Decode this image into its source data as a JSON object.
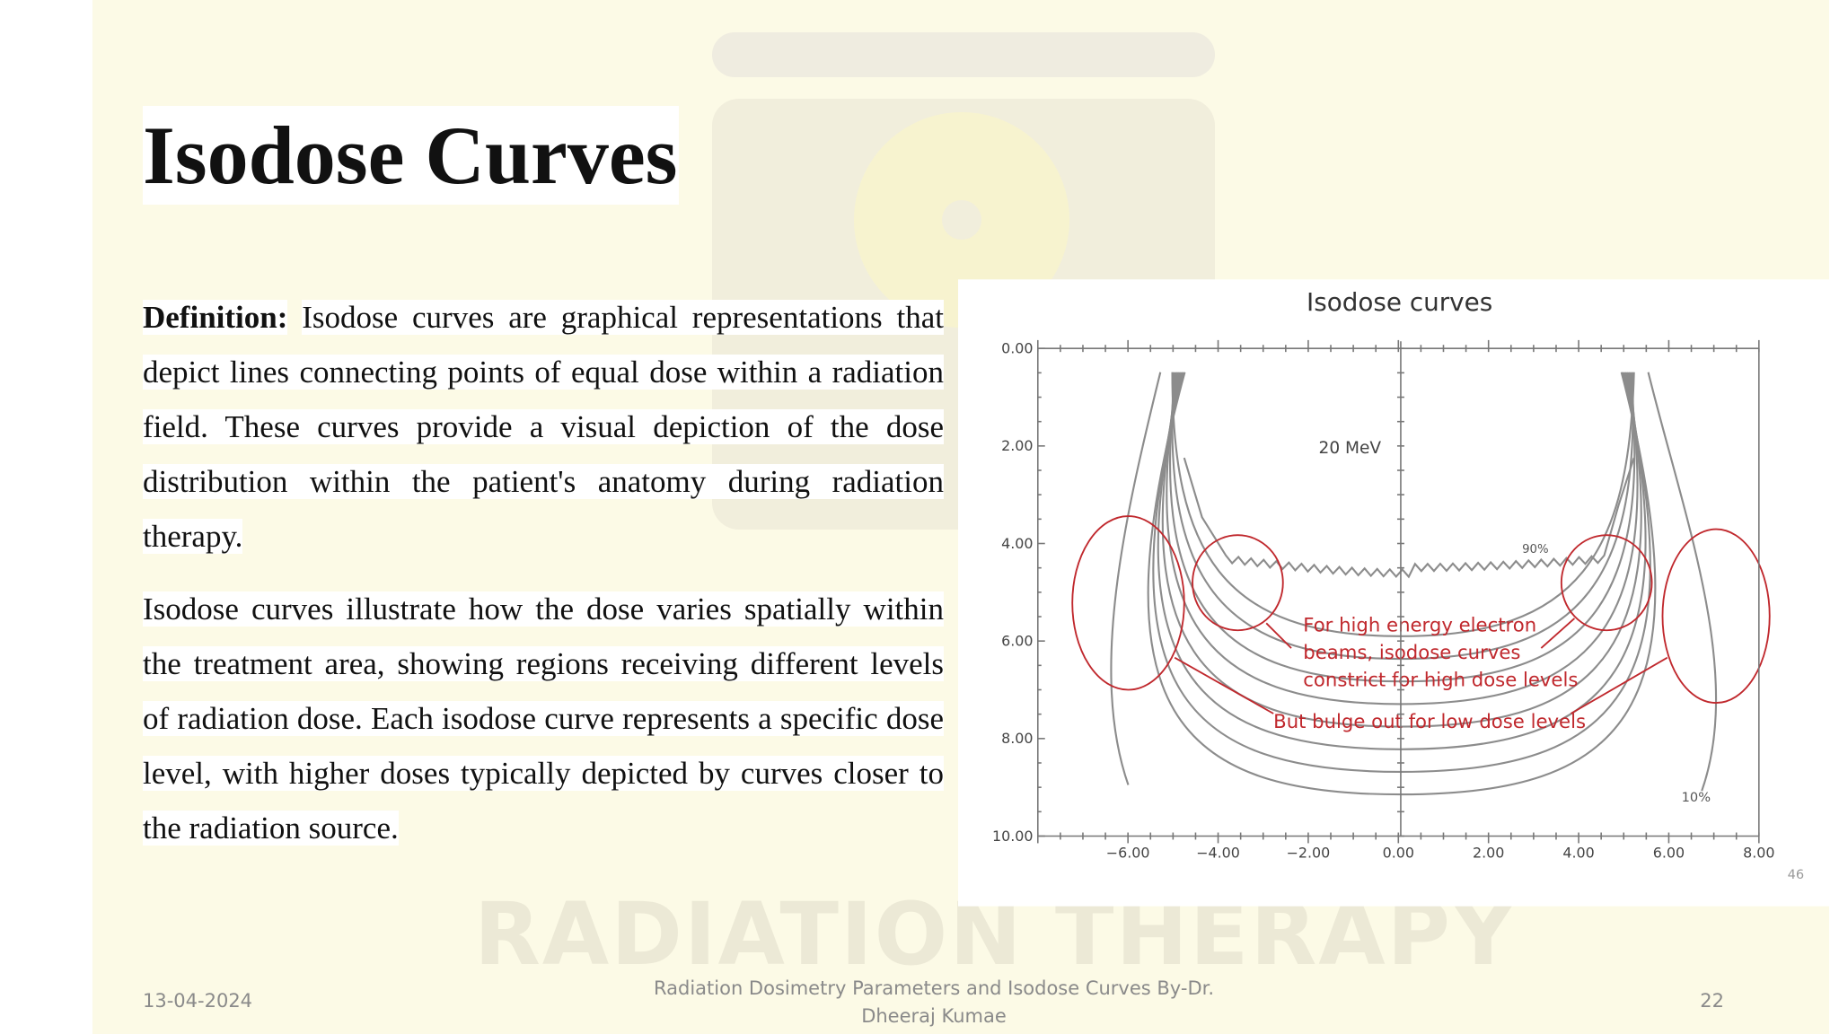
{
  "slide": {
    "title": "Isodose Curves",
    "paragraphs": [
      {
        "lead": "Definition:",
        "text": "Isodose curves are graphical representations that depict lines connecting points of equal dose within a radiation field. These curves provide a visual depiction of the dose distribution within the patient's anatomy during radiation therapy."
      },
      {
        "text": "Isodose curves illustrate how the dose varies spatially within the treatment area, showing regions receiving different levels of radiation dose. Each isodose curve represents a specific dose level, with higher doses typically depicted by curves closer to the radiation source."
      }
    ],
    "figure": {
      "title": "Isodose curves",
      "y_labels": [
        "0.00",
        "2.00",
        "4.00",
        "6.00",
        "8.00",
        "10.00"
      ],
      "x_labels": [
        "−6.00",
        "−4.00",
        "−2.00",
        "0.00",
        "2.00",
        "4.00",
        "6.00",
        "8.00"
      ],
      "energy_label": "20 MeV",
      "high_label": "90%",
      "low_label": "10%",
      "annotation_lines": [
        "For high energy electron",
        "beams, isodose curves",
        "constrict for high dose levels"
      ],
      "bulge_note": "But bulge out for low dose levels",
      "page_number": "46"
    },
    "watermark": "RADIATION THERAPY",
    "footer": {
      "date": "13-04-2024",
      "caption": [
        "Radiation Dosimetry Parameters and Isodose Curves By-Dr.",
        "Dheeraj Kumae"
      ],
      "slide_number": "22"
    }
  }
}
